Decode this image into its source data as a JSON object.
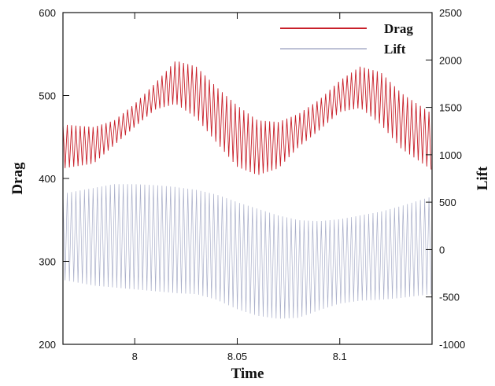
{
  "chart_data": {
    "type": "line",
    "xlabel": "Time",
    "ylabel_left": "Drag",
    "ylabel_right": "Lift",
    "xlim": [
      7.965,
      8.145
    ],
    "ylim_left": [
      200,
      600
    ],
    "ylim_right": [
      -1000,
      2500
    ],
    "x_ticks": [
      8,
      8.05,
      8.1
    ],
    "y_ticks_left": [
      200,
      300,
      400,
      500,
      600
    ],
    "y_ticks_right": [
      -1000,
      -500,
      0,
      500,
      1000,
      1500,
      2000,
      2500
    ],
    "legend_position": "top-right",
    "grid": false,
    "series": [
      {
        "name": "Drag",
        "axis": "left",
        "color": "#c8202a",
        "oscillation_period": 0.0021,
        "upper_envelope": [
          [
            7.965,
            465
          ],
          [
            7.98,
            462
          ],
          [
            7.99,
            470
          ],
          [
            8.0,
            490
          ],
          [
            8.01,
            515
          ],
          [
            8.02,
            542
          ],
          [
            8.03,
            535
          ],
          [
            8.04,
            510
          ],
          [
            8.05,
            488
          ],
          [
            8.06,
            470
          ],
          [
            8.07,
            468
          ],
          [
            8.08,
            478
          ],
          [
            8.09,
            495
          ],
          [
            8.1,
            518
          ],
          [
            8.11,
            535
          ],
          [
            8.12,
            528
          ],
          [
            8.13,
            503
          ],
          [
            8.145,
            478
          ]
        ],
        "lower_envelope": [
          [
            7.965,
            412
          ],
          [
            7.98,
            418
          ],
          [
            7.99,
            440
          ],
          [
            8.0,
            462
          ],
          [
            8.01,
            483
          ],
          [
            8.02,
            490
          ],
          [
            8.03,
            473
          ],
          [
            8.04,
            443
          ],
          [
            8.05,
            414
          ],
          [
            8.06,
            404
          ],
          [
            8.07,
            412
          ],
          [
            8.08,
            438
          ],
          [
            8.09,
            458
          ],
          [
            8.1,
            480
          ],
          [
            8.11,
            485
          ],
          [
            8.12,
            465
          ],
          [
            8.13,
            436
          ],
          [
            8.145,
            410
          ]
        ]
      },
      {
        "name": "Lift",
        "axis": "right",
        "color": "#a9aec9",
        "oscillation_period": 0.0021,
        "upper_envelope": [
          [
            7.965,
            590
          ],
          [
            7.98,
            650
          ],
          [
            7.99,
            690
          ],
          [
            8.0,
            690
          ],
          [
            8.01,
            680
          ],
          [
            8.02,
            660
          ],
          [
            8.03,
            630
          ],
          [
            8.04,
            580
          ],
          [
            8.05,
            500
          ],
          [
            8.06,
            430
          ],
          [
            8.07,
            360
          ],
          [
            8.08,
            310
          ],
          [
            8.09,
            300
          ],
          [
            8.1,
            320
          ],
          [
            8.11,
            360
          ],
          [
            8.12,
            400
          ],
          [
            8.13,
            460
          ],
          [
            8.145,
            560
          ]
        ],
        "lower_envelope": [
          [
            7.965,
            -320
          ],
          [
            7.98,
            -380
          ],
          [
            7.99,
            -400
          ],
          [
            8.0,
            -420
          ],
          [
            8.01,
            -440
          ],
          [
            8.02,
            -460
          ],
          [
            8.03,
            -470
          ],
          [
            8.04,
            -530
          ],
          [
            8.05,
            -630
          ],
          [
            8.06,
            -700
          ],
          [
            8.07,
            -730
          ],
          [
            8.08,
            -720
          ],
          [
            8.09,
            -640
          ],
          [
            8.1,
            -570
          ],
          [
            8.11,
            -540
          ],
          [
            8.12,
            -530
          ],
          [
            8.13,
            -510
          ],
          [
            8.145,
            -470
          ]
        ]
      }
    ]
  }
}
